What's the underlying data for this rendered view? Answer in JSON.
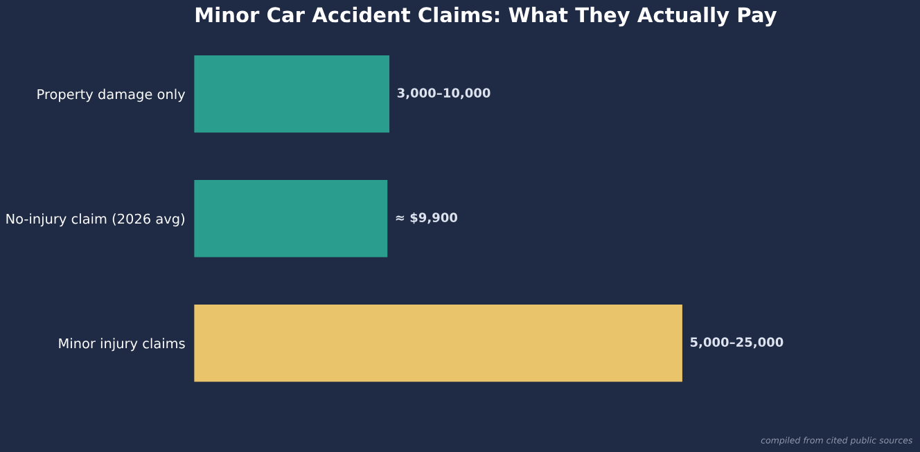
{
  "chart_data": {
    "type": "bar",
    "orientation": "horizontal",
    "title": "Minor Car Accident Claims: What They Actually Pay",
    "categories": [
      "Property damage only",
      "No-injury claim (2026 avg)",
      "Minor injury claims"
    ],
    "values": [
      10000,
      9900,
      25000
    ],
    "colors": [
      "#2a9d8f",
      "#2a9d8f",
      "#e9c46a"
    ],
    "value_labels": [
      "3,000–10,000",
      "≈ $9,900",
      "5,000–25,000"
    ],
    "annotations": [
      "compiled from cited public sources"
    ],
    "grid": false,
    "legend": false
  }
}
